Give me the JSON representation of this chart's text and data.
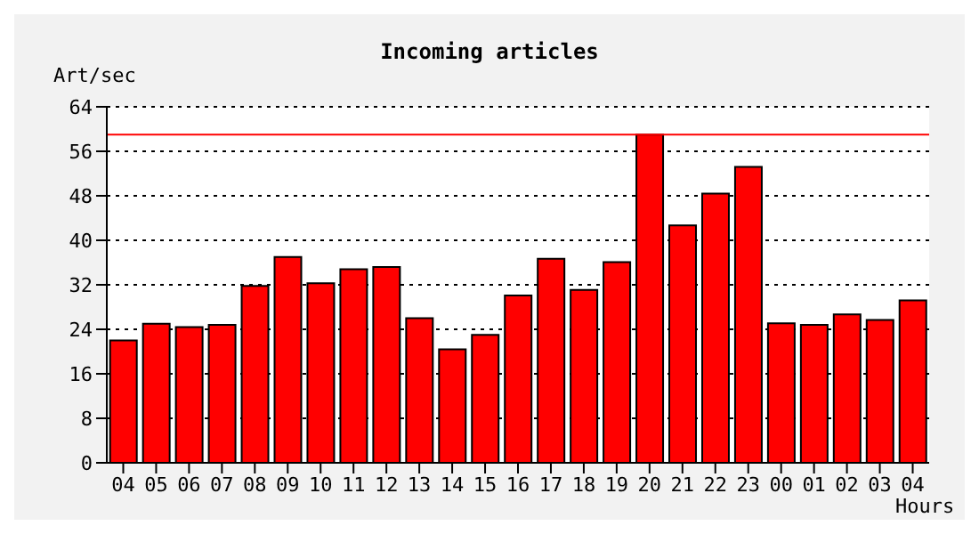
{
  "chart_data": {
    "type": "bar",
    "title": "Incoming articles",
    "xlabel": "Hours",
    "ylabel": "Art/sec",
    "categories": [
      "04",
      "05",
      "06",
      "07",
      "08",
      "09",
      "10",
      "11",
      "12",
      "13",
      "14",
      "15",
      "16",
      "17",
      "18",
      "19",
      "20",
      "21",
      "22",
      "23",
      "00",
      "01",
      "02",
      "03",
      "04"
    ],
    "values": [
      22,
      25,
      24.4,
      24.8,
      31.8,
      37,
      32.3,
      34.8,
      35.2,
      26,
      20.4,
      23,
      30.1,
      36.7,
      31.1,
      36.1,
      59,
      42.7,
      48.4,
      53.2,
      25.1,
      24.8,
      26.7,
      25.7,
      29.2
    ],
    "color": "#ff0000",
    "ylim": [
      0,
      64
    ],
    "yticks": [
      0,
      8,
      16,
      24,
      32,
      40,
      48,
      56,
      64
    ],
    "grid": "y",
    "ref_lines": [
      {
        "axis": "y",
        "value": 59,
        "color": "#ff0000"
      }
    ]
  }
}
